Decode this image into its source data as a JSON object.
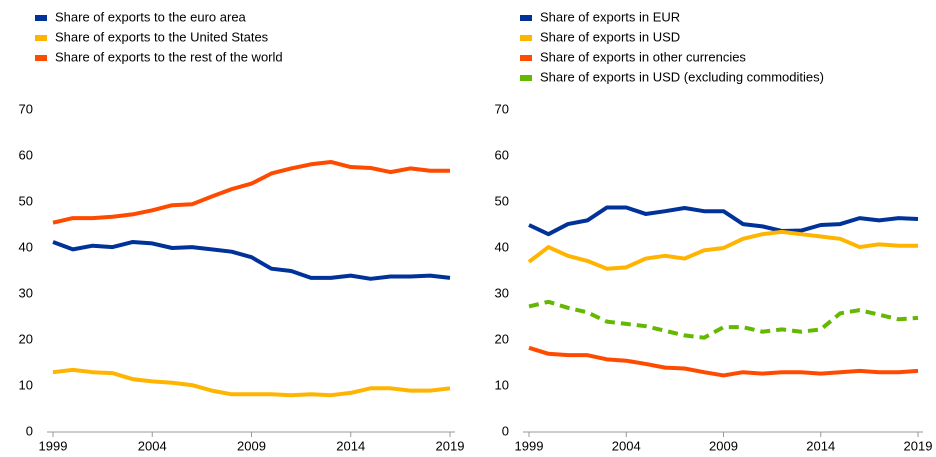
{
  "chart_data": [
    {
      "type": "line",
      "x": [
        1999,
        2000,
        2001,
        2002,
        2003,
        2004,
        2005,
        2006,
        2007,
        2008,
        2009,
        2010,
        2011,
        2012,
        2013,
        2014,
        2015,
        2016,
        2017,
        2018,
        2019
      ],
      "series": [
        {
          "name": "Share of exports to the euro area",
          "color": "#003299",
          "values": [
            41.3,
            39.7,
            40.5,
            40.2,
            41.3,
            41.0,
            40.0,
            40.2,
            39.7,
            39.2,
            38.0,
            35.5,
            35.0,
            33.5,
            33.5,
            34.0,
            33.3,
            33.8,
            33.8,
            34.0,
            33.5
          ]
        },
        {
          "name": "Share of exports to the United States",
          "color": "#ffb400",
          "values": [
            13.0,
            13.5,
            13.0,
            12.8,
            11.5,
            11.0,
            10.7,
            10.2,
            9.0,
            8.2,
            8.2,
            8.2,
            8.0,
            8.2,
            8.0,
            8.5,
            9.5,
            9.5,
            9.0,
            9.0,
            9.5
          ]
        },
        {
          "name": "Share of exports to the rest of the world",
          "color": "#ff4b00",
          "values": [
            45.5,
            46.5,
            46.5,
            46.8,
            47.3,
            48.2,
            49.3,
            49.5,
            51.2,
            52.8,
            54.0,
            56.2,
            57.3,
            58.2,
            58.7,
            57.6,
            57.4,
            56.5,
            57.3,
            56.8,
            56.8
          ]
        }
      ],
      "xlim": [
        1999,
        2019
      ],
      "xticks": [
        1999,
        2004,
        2009,
        2014,
        2019
      ],
      "ylim": [
        0,
        70
      ],
      "yticks": [
        0,
        10,
        20,
        30,
        40,
        50,
        60,
        70
      ]
    },
    {
      "type": "line",
      "x": [
        1999,
        2000,
        2001,
        2002,
        2003,
        2004,
        2005,
        2006,
        2007,
        2008,
        2009,
        2010,
        2011,
        2012,
        2013,
        2014,
        2015,
        2016,
        2017,
        2018,
        2019
      ],
      "series": [
        {
          "name": "Share of exports in EUR",
          "color": "#003299",
          "values": [
            45.0,
            43.0,
            45.2,
            46.0,
            48.8,
            48.8,
            47.4,
            48.0,
            48.7,
            48.0,
            48.0,
            45.2,
            44.7,
            43.7,
            43.8,
            45.0,
            45.2,
            46.5,
            46.0,
            46.5,
            46.3
          ]
        },
        {
          "name": "Share of exports in USD",
          "color": "#ffb400",
          "values": [
            37.0,
            40.2,
            38.3,
            37.2,
            35.5,
            35.8,
            37.7,
            38.3,
            37.7,
            39.5,
            40.0,
            42.0,
            43.0,
            43.5,
            43.0,
            42.5,
            42.0,
            40.2,
            40.8,
            40.5,
            40.5
          ]
        },
        {
          "name": "Share of exports in other currencies",
          "color": "#ff4b00",
          "values": [
            18.3,
            17.0,
            16.7,
            16.7,
            15.8,
            15.5,
            14.8,
            14.0,
            13.8,
            13.0,
            12.3,
            13.0,
            12.7,
            13.0,
            13.0,
            12.7,
            13.0,
            13.3,
            13.0,
            13.0,
            13.3
          ]
        },
        {
          "name": "Share of exports in USD (excluding commodities)",
          "color": "#65b800",
          "dashed": true,
          "values": [
            27.3,
            28.3,
            27.0,
            26.0,
            24.0,
            23.5,
            23.0,
            22.0,
            21.0,
            20.5,
            22.8,
            22.8,
            21.8,
            22.3,
            21.8,
            22.3,
            25.8,
            26.5,
            25.5,
            24.5,
            24.8
          ]
        }
      ],
      "xlim": [
        1999,
        2019
      ],
      "xticks": [
        1999,
        2004,
        2009,
        2014,
        2019
      ],
      "ylim": [
        0,
        70
      ],
      "yticks": [
        0,
        10,
        20,
        30,
        40,
        50,
        60,
        70
      ]
    }
  ]
}
